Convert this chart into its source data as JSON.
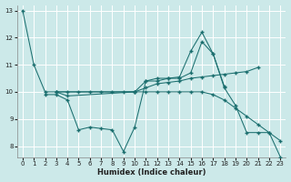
{
  "xlabel": "Humidex (Indice chaleur)",
  "xlim": [
    -0.5,
    23.5
  ],
  "ylim": [
    7.6,
    13.2
  ],
  "yticks": [
    8,
    9,
    10,
    11,
    12,
    13
  ],
  "xticks": [
    0,
    1,
    2,
    3,
    4,
    5,
    6,
    7,
    8,
    9,
    10,
    11,
    12,
    13,
    14,
    15,
    16,
    17,
    18,
    19,
    20,
    21,
    22,
    23
  ],
  "bg_color": "#cce9e9",
  "grid_color": "#aed8d8",
  "line_color": "#1a6e6e",
  "series": [
    {
      "x": [
        0,
        1,
        2,
        3,
        4,
        5,
        6,
        7,
        8,
        9,
        10,
        11,
        12,
        13,
        14,
        15,
        16,
        17,
        18,
        19,
        20,
        21
      ],
      "y": [
        13.0,
        11.0,
        10.0,
        10.0,
        10.0,
        10.0,
        10.0,
        10.0,
        10.0,
        10.0,
        10.0,
        10.15,
        10.3,
        10.35,
        10.4,
        10.5,
        10.55,
        10.6,
        10.65,
        10.7,
        10.75,
        10.9
      ]
    },
    {
      "x": [
        2,
        3,
        4,
        5,
        6,
        7,
        8,
        9,
        10,
        11,
        12,
        13,
        14,
        15,
        16,
        17,
        18
      ],
      "y": [
        9.9,
        9.9,
        9.7,
        8.6,
        8.7,
        8.65,
        8.6,
        7.8,
        8.7,
        10.4,
        10.4,
        10.5,
        10.55,
        11.5,
        12.2,
        11.4,
        10.2
      ]
    },
    {
      "x": [
        3,
        4,
        10,
        11,
        12,
        13,
        14,
        15,
        16,
        17,
        18,
        19,
        20,
        21,
        22,
        23
      ],
      "y": [
        10.0,
        9.85,
        10.0,
        10.4,
        10.5,
        10.5,
        10.5,
        10.7,
        11.85,
        11.4,
        10.15,
        9.5,
        8.5,
        8.5,
        8.5,
        7.6
      ]
    },
    {
      "x": [
        3,
        10,
        11,
        12,
        13,
        14,
        15,
        16,
        17,
        18,
        19,
        20,
        21,
        22,
        23
      ],
      "y": [
        10.0,
        10.0,
        10.0,
        10.0,
        10.0,
        10.0,
        10.0,
        10.0,
        9.9,
        9.7,
        9.4,
        9.1,
        8.8,
        8.5,
        8.2
      ]
    }
  ]
}
